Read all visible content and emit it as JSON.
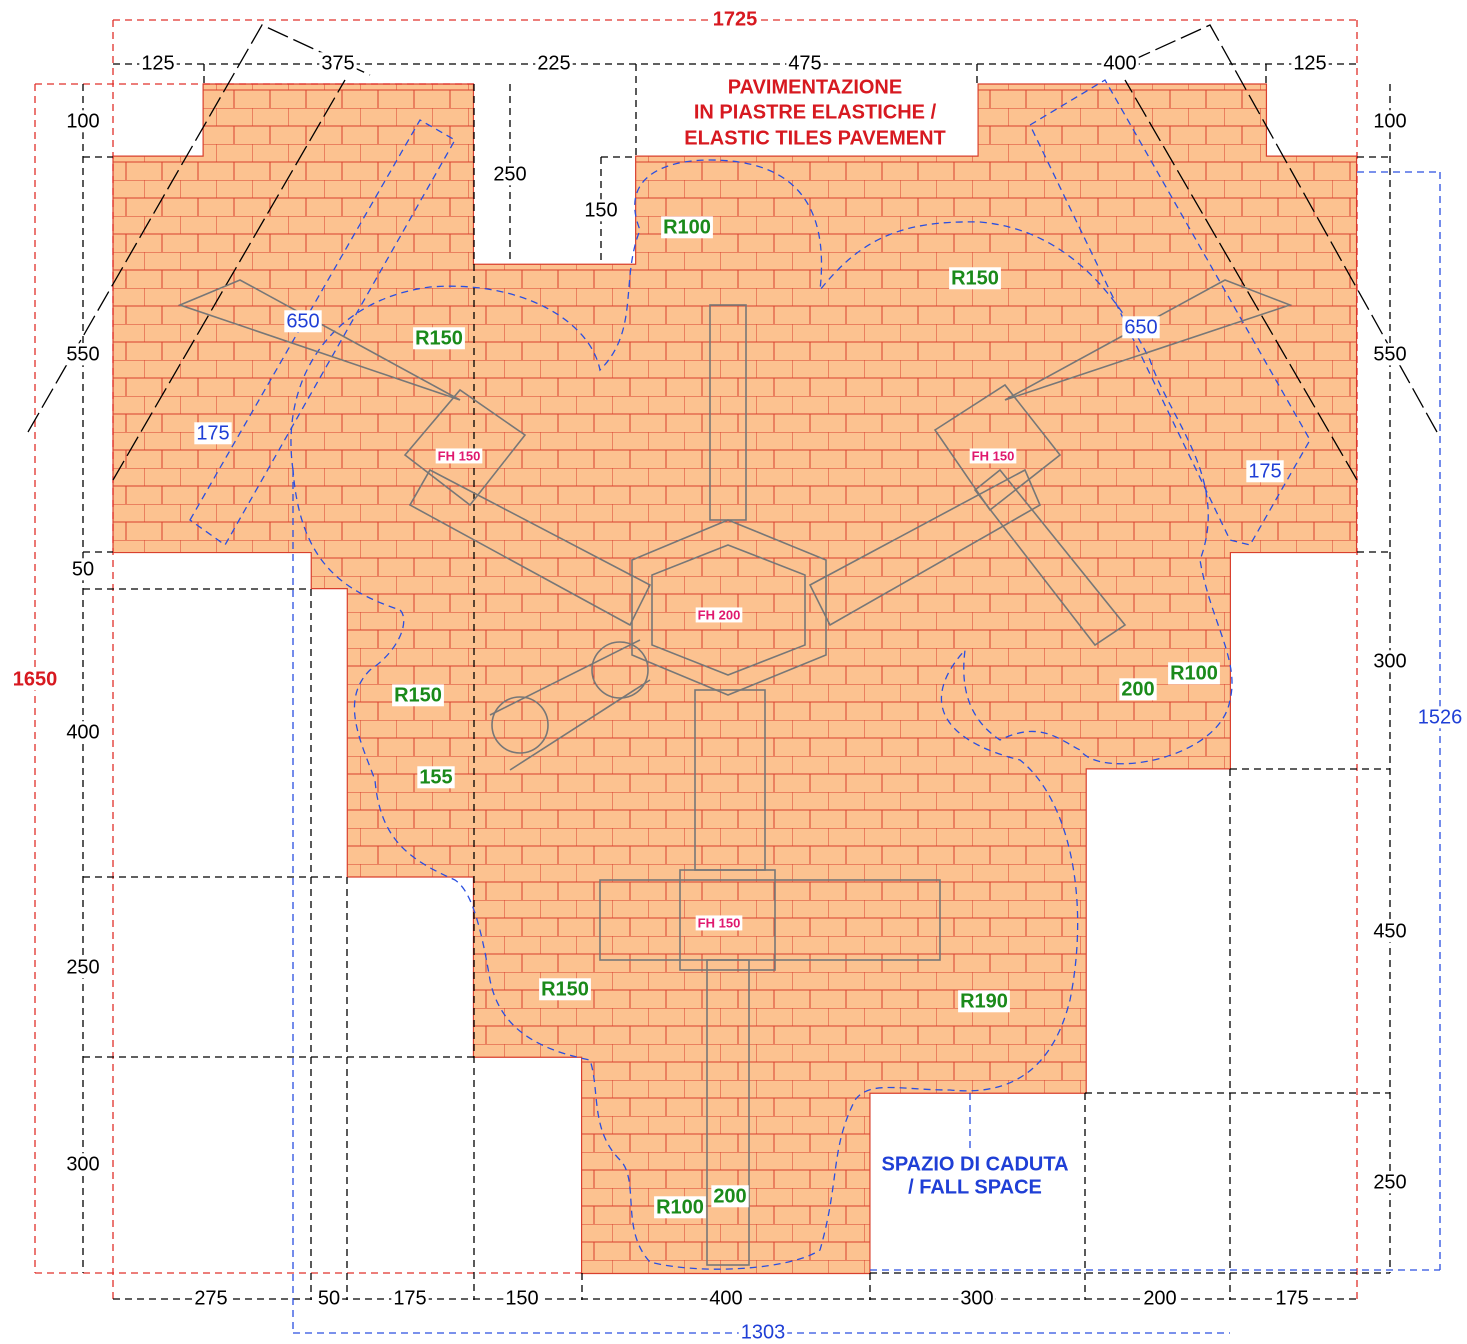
{
  "pavement_note": [
    "PAVIMENTAZIONE",
    "IN PIASTRE ELASTICHE /",
    "ELASTIC TILES PAVEMENT"
  ],
  "fall_space_note": [
    "SPAZIO DI CADUTA",
    "/ FALL SPACE"
  ],
  "dimensions": {
    "total_width": "1725",
    "total_height": "1650",
    "top": [
      "125",
      "375",
      "225",
      "475",
      "400",
      "125"
    ],
    "bottom": [
      "275",
      "50",
      "175",
      "150",
      "400",
      "300",
      "200",
      "175"
    ],
    "left": [
      "100",
      "550",
      "50",
      "400",
      "250",
      "300"
    ],
    "right": [
      "100",
      "550",
      "300",
      "450",
      "250"
    ],
    "inner": [
      "250",
      "150"
    ],
    "fall_space_width": "1303",
    "fall_space_height": "1526",
    "diagonals": [
      "650",
      "650",
      "175",
      "175"
    ]
  },
  "radii": [
    "R100",
    "R150",
    "R150",
    "R150",
    "155",
    "R100",
    "200",
    "R150",
    "R190",
    "R100",
    "200"
  ],
  "fall_heights": [
    "FH 150",
    "FH 150",
    "FH 200",
    "FH 150"
  ]
}
